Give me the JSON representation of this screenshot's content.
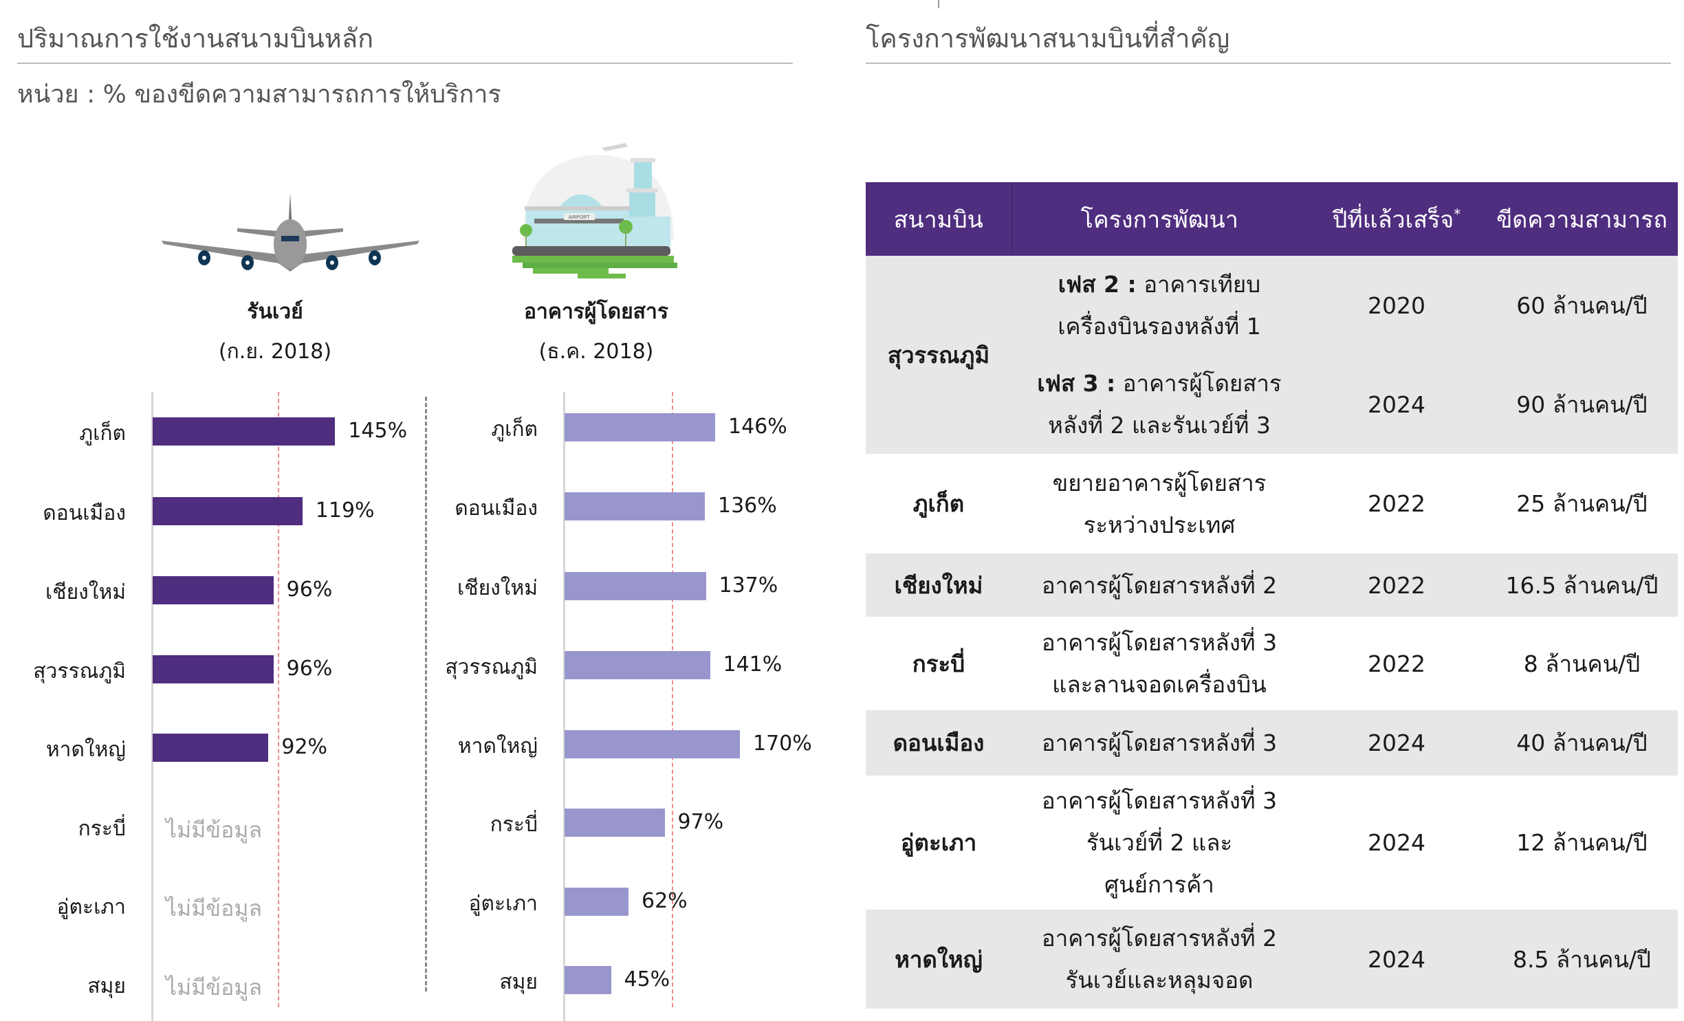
{
  "left": {
    "title": "ปริมาณการใช้งานสนามบินหลัก",
    "subtitle": "หน่วย : % ของขีดความสามารถการให้บริการ"
  },
  "chart_data": [
    {
      "type": "bar",
      "orientation": "horizontal",
      "title": "รันเวย์",
      "subtitle": "(ก.ย. 2018)",
      "icon": "airplane-icon",
      "categories": [
        "ภูเก็ต",
        "ดอนเมือง",
        "เชียงใหม่",
        "สุวรรณภูมิ",
        "หาดใหญ่",
        "กระบี่",
        "อู่ตะเภา",
        "สมุย"
      ],
      "values": [
        145,
        119,
        96,
        96,
        92,
        null,
        null,
        null
      ],
      "value_labels": [
        "145%",
        "119%",
        "96%",
        "96%",
        "92%",
        "ไม่มีข้อมูล",
        "ไม่มีข้อมูล",
        "ไม่มีข้อมูล"
      ],
      "reference_line": 100,
      "color": "#4f2d7f"
    },
    {
      "type": "bar",
      "orientation": "horizontal",
      "title": "อาคารผู้โดยสาร",
      "subtitle": "(ธ.ค. 2018)",
      "icon": "airport-terminal-icon",
      "categories": [
        "ภูเก็ต",
        "ดอนเมือง",
        "เชียงใหม่",
        "สุวรรณภูมิ",
        "หาดใหญ่",
        "กระบี่",
        "อู่ตะเภา",
        "สมุย"
      ],
      "values": [
        146,
        136,
        137,
        141,
        170,
        97,
        62,
        45
      ],
      "value_labels": [
        "146%",
        "136%",
        "137%",
        "141%",
        "170%",
        "97%",
        "62%",
        "45%"
      ],
      "reference_line": 100,
      "color": "#9896cc"
    }
  ],
  "right": {
    "title": "โครงการพัฒนาสนามบินที่สำคัญ",
    "table": {
      "headers": [
        "สนามบิน",
        "โครงการพัฒนา",
        "ปีที่แล้วเสร็จ",
        "ขีดความสามารถ"
      ],
      "header_mark": "*",
      "header_color": "#4f2d7f",
      "rows": [
        {
          "airport": "สุวรรณภูมิ",
          "items": [
            {
              "phase": "เฟส 2 :",
              "project": [
                "อาคารเทียบ",
                "เครื่องบินรองหลังที่ 1"
              ],
              "year": "2020",
              "capacity": "60 ล้านคน/ปี"
            },
            {
              "phase": "เฟส 3 :",
              "project": [
                "อาคารผู้โดยสาร",
                "หลังที่ 2 และรันเวย์ที่ 3"
              ],
              "year": "2024",
              "capacity": "90 ล้านคน/ปี"
            }
          ]
        },
        {
          "airport": "ภูเก็ต",
          "project": [
            "ขยายอาคารผู้โดยสาร",
            "ระหว่างประเทศ"
          ],
          "year": "2022",
          "capacity": "25 ล้านคน/ปี"
        },
        {
          "airport": "เชียงใหม่",
          "project": [
            "อาคารผู้โดยสารหลังที่ 2"
          ],
          "year": "2022",
          "capacity": "16.5 ล้านคน/ปี"
        },
        {
          "airport": "กระบี่",
          "project": [
            "อาคารผู้โดยสารหลังที่ 3",
            "และลานจอดเครื่องบิน"
          ],
          "year": "2022",
          "capacity": "8 ล้านคน/ปี"
        },
        {
          "airport": "ดอนเมือง",
          "project": [
            "อาคารผู้โดยสารหลังที่ 3"
          ],
          "year": "2024",
          "capacity": "40 ล้านคน/ปี"
        },
        {
          "airport": "อู่ตะเภา",
          "project": [
            "อาคารผู้โดยสารหลังที่ 3",
            "รันเวย์ที่ 2 และ",
            "ศูนย์การค้า"
          ],
          "year": "2024",
          "capacity": "12 ล้านคน/ปี"
        },
        {
          "airport": "หาดใหญ่",
          "project": [
            "อาคารผู้โดยสารหลังที่ 2",
            "รันเวย์และหลุมจอด"
          ],
          "year": "2024",
          "capacity": "8.5 ล้านคน/ปี"
        }
      ]
    }
  }
}
